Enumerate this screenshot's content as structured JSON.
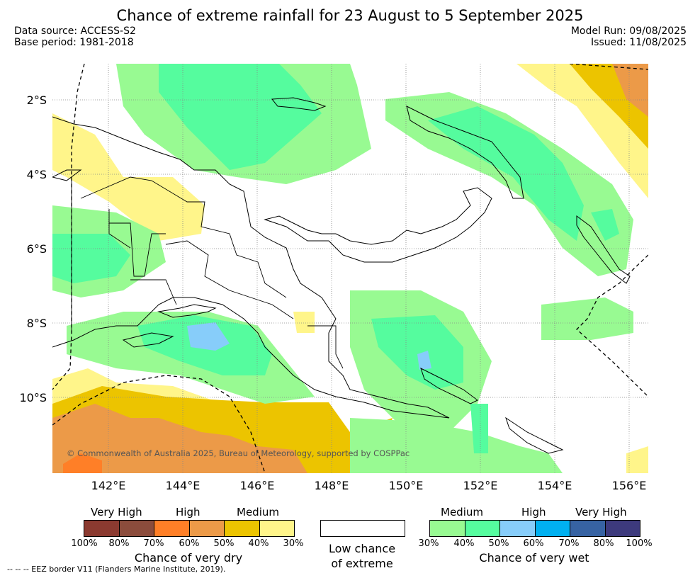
{
  "title": "Chance of extreme rainfall for 23 August to 5 September 2025",
  "data_source": "Data source: ACCESS-S2",
  "base_period": "Base period: 1981-2018",
  "model_run": "Model Run: 09/08/2025",
  "issued": "Issued: 11/08/2025",
  "map": {
    "lat_labels": [
      "2°S",
      "4°S",
      "6°S",
      "8°S",
      "10°S"
    ],
    "lon_labels": [
      "142°E",
      "144°E",
      "146°E",
      "148°E",
      "150°E",
      "152°E",
      "154°E",
      "156°E"
    ],
    "copyright": "© Commonwealth of Australia 2025, Bureau of Meteorology, supported by COSPPac"
  },
  "legend_dry": {
    "levels": [
      "Very High",
      "High",
      "Medium"
    ],
    "colors": [
      "#8b3a30",
      "#8b4c3c",
      "#ff7f27",
      "#ec9a48",
      "#ecc400",
      "#fff58a"
    ],
    "ticks": [
      "100%",
      "80%",
      "70%",
      "60%",
      "50%",
      "40%",
      "30%"
    ],
    "caption": "Chance of very dry"
  },
  "legend_low": {
    "caption_line1": "Low chance",
    "caption_line2": "of extreme"
  },
  "legend_wet": {
    "levels": [
      "Medium",
      "High",
      "Very High"
    ],
    "colors": [
      "#98fa92",
      "#55fc9e",
      "#87cdfa",
      "#00b0f0",
      "#3763a3",
      "#3d3a7d"
    ],
    "ticks": [
      "30%",
      "40%",
      "50%",
      "60%",
      "70%",
      "80%",
      "100%"
    ],
    "caption": "Chance of very wet"
  },
  "eez_note": "--  --  -- EEZ border V11 (Flanders Marine Institute, 2019)."
}
